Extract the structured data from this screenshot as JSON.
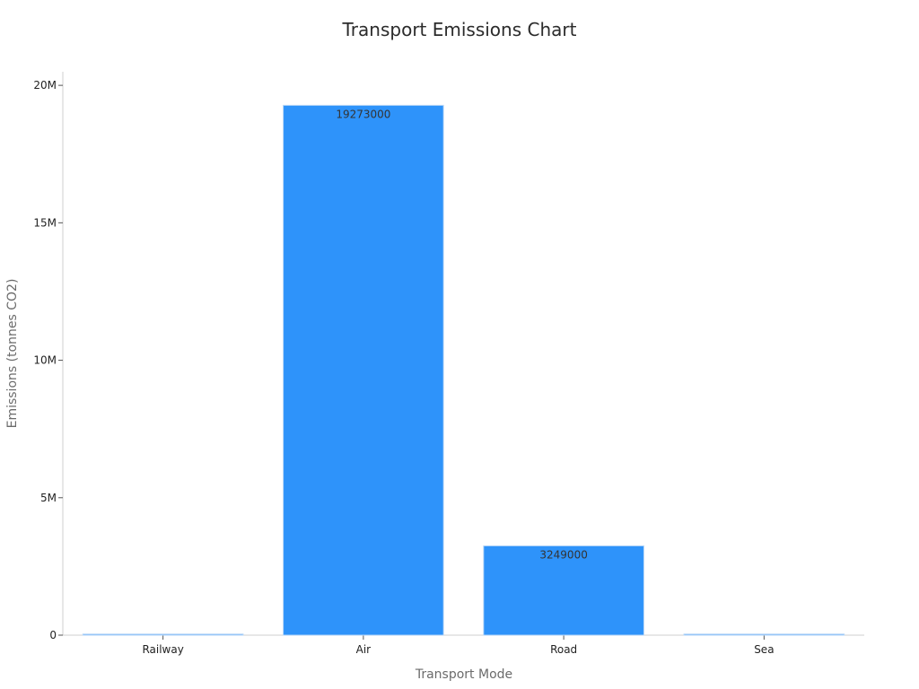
{
  "chart_data": {
    "type": "bar",
    "title": "Transport Emissions Chart",
    "xlabel": "Transport Mode",
    "ylabel": "Emissions (tonnes CO2)",
    "categories": [
      "Railway",
      "Air",
      "Road",
      "Sea"
    ],
    "values": [
      40000,
      19273000,
      3249000,
      40000
    ],
    "data_labels": [
      "",
      "19273000",
      "3249000",
      ""
    ],
    "ylim": [
      0,
      20200000
    ],
    "y_ticks": [
      0,
      5000000,
      10000000,
      15000000,
      20000000
    ],
    "y_tick_labels": [
      "0",
      "5M",
      "10M",
      "15M",
      "20M"
    ],
    "grid": false,
    "colors": {
      "bar": "#2e93fa",
      "bar_edge": "#b7d6f7",
      "axis": "#cfcfcf"
    }
  }
}
